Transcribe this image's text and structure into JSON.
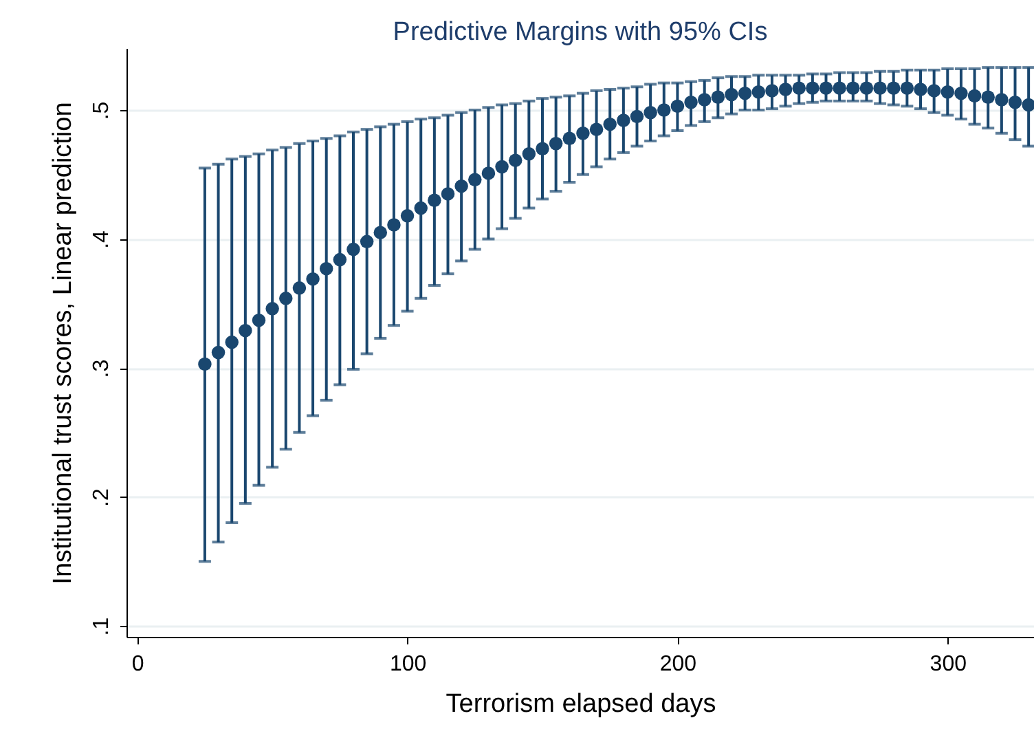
{
  "chart_data": {
    "type": "scatter",
    "title": "Predictive Margins with 95% CIs",
    "xlabel": "Terrorism elapsed days",
    "ylabel": "Institutional trust scores, Linear prediction",
    "x": [
      25,
      30,
      35,
      40,
      45,
      50,
      55,
      60,
      65,
      70,
      75,
      80,
      85,
      90,
      95,
      100,
      105,
      110,
      115,
      120,
      125,
      130,
      135,
      140,
      145,
      150,
      155,
      160,
      165,
      170,
      175,
      180,
      185,
      190,
      195,
      200,
      205,
      210,
      215,
      220,
      225,
      230,
      235,
      240,
      245,
      250,
      255,
      260,
      265,
      270,
      275,
      280,
      285,
      290,
      295,
      300,
      305,
      310,
      315,
      320,
      325,
      330
    ],
    "series": [
      {
        "color": "#1a476f",
        "values": [
          0.303,
          0.312,
          0.32,
          0.329,
          0.337,
          0.346,
          0.354,
          0.362,
          0.369,
          0.377,
          0.384,
          0.392,
          0.398,
          0.405,
          0.411,
          0.418,
          0.424,
          0.43,
          0.435,
          0.441,
          0.446,
          0.451,
          0.456,
          0.461,
          0.466,
          0.47,
          0.474,
          0.478,
          0.482,
          0.485,
          0.489,
          0.492,
          0.495,
          0.498,
          0.5,
          0.503,
          0.506,
          0.508,
          0.51,
          0.512,
          0.513,
          0.514,
          0.515,
          0.516,
          0.517,
          0.517,
          0.517,
          0.517,
          0.517,
          0.517,
          0.517,
          0.517,
          0.517,
          0.516,
          0.515,
          0.514,
          0.513,
          0.511,
          0.51,
          0.508,
          0.506,
          0.504
        ],
        "errors": [
          [
            0.15,
            0.455
          ],
          [
            0.165,
            0.458
          ],
          [
            0.18,
            0.462
          ],
          [
            0.195,
            0.464
          ],
          [
            0.209,
            0.466
          ],
          [
            0.223,
            0.469
          ],
          [
            0.237,
            0.471
          ],
          [
            0.25,
            0.474
          ],
          [
            0.263,
            0.476
          ],
          [
            0.275,
            0.478
          ],
          [
            0.287,
            0.48
          ],
          [
            0.299,
            0.483
          ],
          [
            0.311,
            0.485
          ],
          [
            0.323,
            0.487
          ],
          [
            0.333,
            0.489
          ],
          [
            0.344,
            0.491
          ],
          [
            0.354,
            0.493
          ],
          [
            0.364,
            0.494
          ],
          [
            0.373,
            0.496
          ],
          [
            0.383,
            0.498
          ],
          [
            0.392,
            0.5
          ],
          [
            0.4,
            0.502
          ],
          [
            0.408,
            0.504
          ],
          [
            0.416,
            0.505
          ],
          [
            0.424,
            0.507
          ],
          [
            0.431,
            0.509
          ],
          [
            0.437,
            0.51
          ],
          [
            0.444,
            0.511
          ],
          [
            0.45,
            0.513
          ],
          [
            0.456,
            0.515
          ],
          [
            0.462,
            0.516
          ],
          [
            0.467,
            0.517
          ],
          [
            0.472,
            0.518
          ],
          [
            0.476,
            0.52
          ],
          [
            0.48,
            0.521
          ],
          [
            0.484,
            0.521
          ],
          [
            0.488,
            0.522
          ],
          [
            0.491,
            0.523
          ],
          [
            0.494,
            0.525
          ],
          [
            0.497,
            0.526
          ],
          [
            0.5,
            0.526
          ],
          [
            0.5,
            0.527
          ],
          [
            0.501,
            0.527
          ],
          [
            0.503,
            0.527
          ],
          [
            0.505,
            0.527
          ],
          [
            0.506,
            0.528
          ],
          [
            0.507,
            0.528
          ],
          [
            0.507,
            0.529
          ],
          [
            0.507,
            0.529
          ],
          [
            0.507,
            0.529
          ],
          [
            0.505,
            0.53
          ],
          [
            0.504,
            0.53
          ],
          [
            0.503,
            0.531
          ],
          [
            0.501,
            0.531
          ],
          [
            0.498,
            0.531
          ],
          [
            0.496,
            0.532
          ],
          [
            0.493,
            0.532
          ],
          [
            0.489,
            0.532
          ],
          [
            0.486,
            0.533
          ],
          [
            0.482,
            0.533
          ],
          [
            0.477,
            0.533
          ],
          [
            0.472,
            0.533
          ]
        ]
      }
    ],
    "xlim": [
      -4,
      332
    ],
    "xticks": [
      0,
      100,
      200,
      300
    ],
    "ylim": [
      0.0915,
      0.548
    ],
    "yticks": [
      {
        "value": 0.1,
        "label": ".1"
      },
      {
        "value": 0.2,
        "label": ".2"
      },
      {
        "value": 0.3,
        "label": ".3"
      },
      {
        "value": 0.4,
        "label": ".4"
      },
      {
        "value": 0.5,
        "label": ".5"
      }
    ],
    "grid": "y",
    "marker": "circle"
  }
}
